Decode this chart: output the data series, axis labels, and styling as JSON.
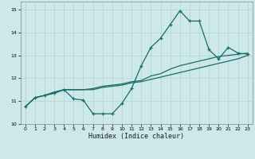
{
  "xlabel": "Humidex (Indice chaleur)",
  "background_color": "#cde8e8",
  "grid_color": "#b8d4d4",
  "line_color": "#1a6b6b",
  "xlim": [
    -0.5,
    23.5
  ],
  "ylim": [
    10.0,
    15.35
  ],
  "xticks": [
    0,
    1,
    2,
    3,
    4,
    5,
    6,
    7,
    8,
    9,
    10,
    11,
    12,
    13,
    14,
    15,
    16,
    17,
    18,
    19,
    20,
    21,
    22,
    23
  ],
  "yticks": [
    10,
    11,
    12,
    13,
    14,
    15
  ],
  "series1_x": [
    0,
    1,
    2,
    3,
    4,
    5,
    6,
    7,
    8,
    9,
    10,
    11,
    12,
    13,
    14,
    15,
    16,
    17,
    18,
    19,
    20,
    21,
    22,
    23
  ],
  "series1_y": [
    10.75,
    11.15,
    11.25,
    11.35,
    11.5,
    11.1,
    11.05,
    10.45,
    10.45,
    10.45,
    10.9,
    11.55,
    12.55,
    13.35,
    13.75,
    14.35,
    14.95,
    14.5,
    14.5,
    13.25,
    12.85,
    13.35,
    13.1,
    13.05
  ],
  "series2_x": [
    0,
    1,
    2,
    3,
    4,
    5,
    6,
    7,
    8,
    9,
    10,
    11,
    12,
    13,
    14,
    15,
    16,
    17,
    18,
    19,
    20,
    21,
    22,
    23
  ],
  "series2_y": [
    10.75,
    11.15,
    11.25,
    11.35,
    11.5,
    11.5,
    11.5,
    11.5,
    11.6,
    11.65,
    11.7,
    11.8,
    11.85,
    11.95,
    12.05,
    12.15,
    12.25,
    12.35,
    12.45,
    12.55,
    12.65,
    12.75,
    12.85,
    13.0
  ],
  "series3_x": [
    0,
    1,
    2,
    3,
    4,
    5,
    6,
    7,
    8,
    9,
    10,
    11,
    12,
    13,
    14,
    15,
    16,
    17,
    18,
    19,
    20,
    21,
    22,
    23
  ],
  "series3_y": [
    10.75,
    11.15,
    11.25,
    11.4,
    11.5,
    11.5,
    11.5,
    11.55,
    11.65,
    11.7,
    11.75,
    11.85,
    11.9,
    12.1,
    12.2,
    12.4,
    12.55,
    12.65,
    12.75,
    12.85,
    12.95,
    13.0,
    13.05,
    13.1
  ]
}
